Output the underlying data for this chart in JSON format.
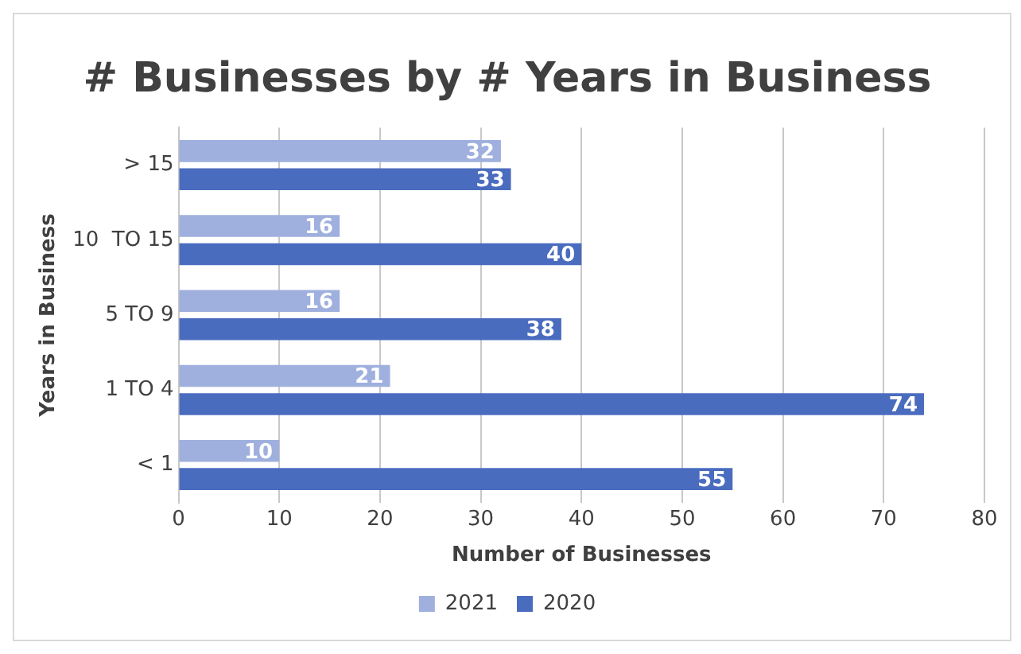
{
  "chart_data": {
    "type": "bar",
    "orientation": "horizontal",
    "title": "# Businesses by # Years in Business",
    "xlabel": "Number of Businesses",
    "ylabel": "Years in Business",
    "categories": [
      "> 15",
      "10  TO 15",
      "5 TO 9",
      "1 TO 4",
      "< 1"
    ],
    "series": [
      {
        "name": "2021",
        "color": "#9fb0de",
        "values": [
          32,
          16,
          16,
          21,
          10
        ]
      },
      {
        "name": "2020",
        "color": "#4a6cbf",
        "values": [
          33,
          40,
          38,
          74,
          55
        ]
      }
    ],
    "xlim": [
      0,
      80
    ],
    "xticks": [
      0,
      10,
      20,
      30,
      40,
      50,
      60,
      70,
      80
    ],
    "grid": "x",
    "legend": "bottom",
    "data_labels": true
  }
}
